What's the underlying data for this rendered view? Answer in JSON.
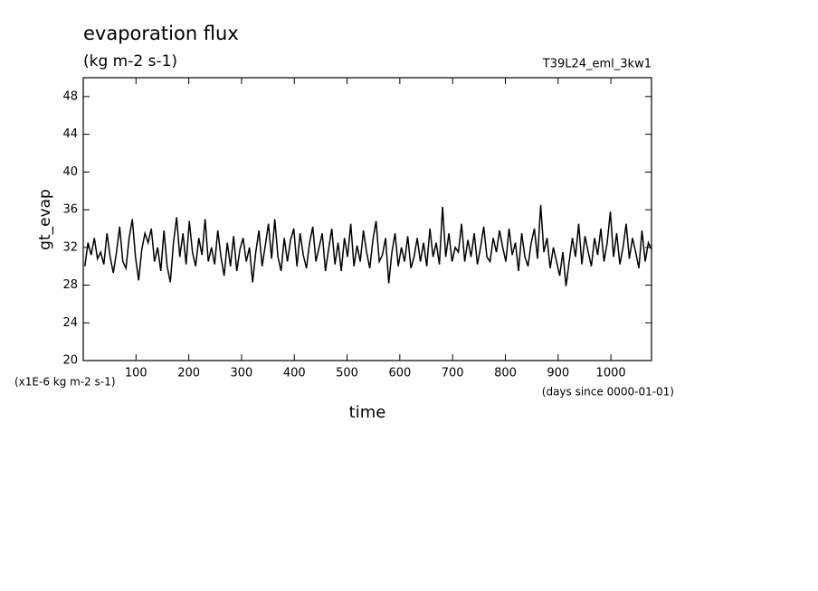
{
  "chart_data": {
    "type": "line",
    "title": "evaporation flux",
    "subtitle": "(kg m-2 s-1)",
    "annotation": "T39L24_eml_3kw1",
    "y_label": "gt_evap",
    "x_label": "time",
    "y_unit_note": "(x1E-6 kg m-2 s-1)",
    "x_unit_note": "(days since 0000-01-01)",
    "xlim": [
      0,
      1077
    ],
    "ylim": [
      20,
      50
    ],
    "xticks": [
      100,
      200,
      300,
      400,
      500,
      600,
      700,
      800,
      900,
      1000
    ],
    "yticks": [
      20,
      24,
      28,
      32,
      36,
      40,
      44,
      48
    ],
    "x": [
      3,
      9,
      15,
      21,
      27,
      33,
      39,
      45,
      51,
      57,
      63,
      69,
      75,
      81,
      87,
      93,
      99,
      105,
      111,
      117,
      123,
      129,
      135,
      141,
      147,
      153,
      159,
      165,
      171,
      177,
      183,
      189,
      195,
      201,
      207,
      213,
      219,
      225,
      231,
      237,
      243,
      249,
      255,
      261,
      267,
      273,
      279,
      285,
      291,
      297,
      303,
      309,
      315,
      321,
      327,
      333,
      339,
      345,
      351,
      357,
      363,
      369,
      375,
      381,
      387,
      393,
      399,
      405,
      411,
      417,
      423,
      429,
      435,
      441,
      447,
      453,
      459,
      465,
      471,
      477,
      483,
      489,
      495,
      501,
      507,
      513,
      519,
      525,
      531,
      537,
      543,
      549,
      555,
      561,
      567,
      573,
      579,
      585,
      591,
      597,
      603,
      609,
      615,
      621,
      627,
      633,
      639,
      645,
      651,
      657,
      663,
      669,
      675,
      681,
      687,
      693,
      699,
      705,
      711,
      717,
      723,
      729,
      735,
      741,
      747,
      753,
      759,
      765,
      771,
      777,
      783,
      789,
      795,
      801,
      807,
      813,
      819,
      825,
      831,
      837,
      843,
      849,
      855,
      861,
      867,
      873,
      879,
      885,
      891,
      897,
      903,
      909,
      915,
      921,
      927,
      933,
      939,
      945,
      951,
      957,
      963,
      969,
      975,
      981,
      987,
      993,
      999,
      1005,
      1011,
      1017,
      1023,
      1029,
      1035,
      1041,
      1047,
      1053,
      1059,
      1065,
      1071,
      1077
    ],
    "series": [
      {
        "name": "gt_evap",
        "color": "#000000",
        "values": [
          30.0,
          32.5,
          31.2,
          33.0,
          30.8,
          31.5,
          30.2,
          33.5,
          31.0,
          29.3,
          31.5,
          34.2,
          30.5,
          29.8,
          33.0,
          35.0,
          31.0,
          28.5,
          31.8,
          33.5,
          32.5,
          34.0,
          30.5,
          32.0,
          29.5,
          33.8,
          30.0,
          28.3,
          32.5,
          35.2,
          31.0,
          33.5,
          30.2,
          34.8,
          31.5,
          30.0,
          33.0,
          31.2,
          35.0,
          30.5,
          32.0,
          30.2,
          33.8,
          31.0,
          29.0,
          32.5,
          30.0,
          33.2,
          29.5,
          31.8,
          33.0,
          30.5,
          32.0,
          28.3,
          31.5,
          33.8,
          30.0,
          32.2,
          34.5,
          30.8,
          35.0,
          31.0,
          29.5,
          33.0,
          30.5,
          32.8,
          34.0,
          30.0,
          33.5,
          31.2,
          29.8,
          32.5,
          34.2,
          30.5,
          32.0,
          33.5,
          29.5,
          31.8,
          34.0,
          30.2,
          32.5,
          29.5,
          33.0,
          31.0,
          34.5,
          30.0,
          32.2,
          30.5,
          33.8,
          31.5,
          29.8,
          32.8,
          34.8,
          30.5,
          31.2,
          33.0,
          28.2,
          31.5,
          33.5,
          30.0,
          32.0,
          30.5,
          33.2,
          29.8,
          31.0,
          33.0,
          30.5,
          32.5,
          30.0,
          34.0,
          31.0,
          32.5,
          30.2,
          36.3,
          31.0,
          33.5,
          30.5,
          32.0,
          31.5,
          34.5,
          30.5,
          32.8,
          31.0,
          33.5,
          30.2,
          32.0,
          34.2,
          31.0,
          30.5,
          33.0,
          31.5,
          33.8,
          32.0,
          30.5,
          34.0,
          31.2,
          32.5,
          29.5,
          33.5,
          31.0,
          30.0,
          32.5,
          34.0,
          30.8,
          36.5,
          31.5,
          33.0,
          29.8,
          32.0,
          30.5,
          29.0,
          31.5,
          27.9,
          30.5,
          33.0,
          31.0,
          34.5,
          30.2,
          33.2,
          31.5,
          30.0,
          33.0,
          31.2,
          34.0,
          30.5,
          32.5,
          35.8,
          31.0,
          33.5,
          30.2,
          32.0,
          34.5,
          30.8,
          33.0,
          31.5,
          29.8,
          33.8,
          30.5,
          32.5,
          31.8
        ]
      }
    ]
  }
}
